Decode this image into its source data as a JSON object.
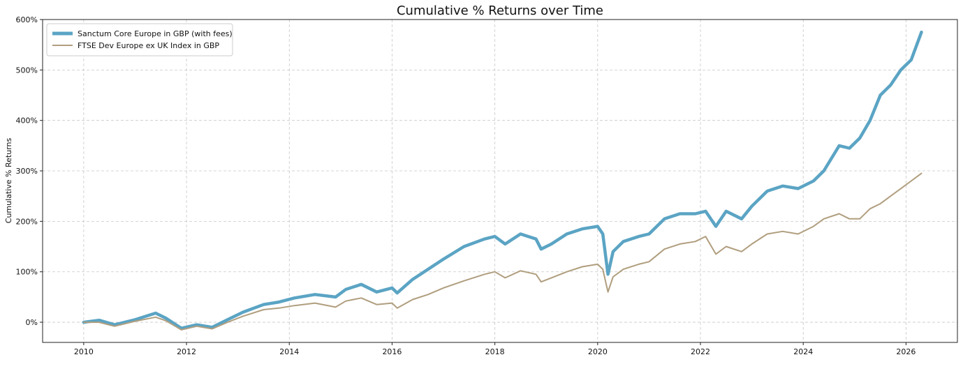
{
  "chart_data": {
    "type": "line",
    "title": "Cumulative % Returns over Time",
    "xlabel": "",
    "ylabel": "Cumulative % Returns",
    "xlim": [
      2009.2,
      2027.0
    ],
    "ylim": [
      -40,
      600
    ],
    "xticks": [
      2010,
      2012,
      2014,
      2016,
      2018,
      2020,
      2022,
      2024,
      2026
    ],
    "yticks": [
      0,
      100,
      200,
      300,
      400,
      500,
      600
    ],
    "ytick_suffix": "%",
    "grid": true,
    "legend_position": "top-left",
    "series": [
      {
        "name": "Sanctum Core Europe in GBP (with fees)",
        "color": "#5ba4c4",
        "x": [
          2010.0,
          2010.3,
          2010.6,
          2011.0,
          2011.4,
          2011.6,
          2011.9,
          2012.2,
          2012.5,
          2012.8,
          2013.1,
          2013.5,
          2013.8,
          2014.1,
          2014.5,
          2014.9,
          2015.1,
          2015.4,
          2015.7,
          2016.0,
          2016.1,
          2016.4,
          2016.7,
          2017.0,
          2017.4,
          2017.8,
          2018.0,
          2018.2,
          2018.5,
          2018.8,
          2018.9,
          2019.1,
          2019.4,
          2019.7,
          2020.0,
          2020.1,
          2020.2,
          2020.3,
          2020.5,
          2020.8,
          2021.0,
          2021.3,
          2021.6,
          2021.9,
          2022.1,
          2022.3,
          2022.5,
          2022.8,
          2023.0,
          2023.3,
          2023.6,
          2023.9,
          2024.2,
          2024.4,
          2024.7,
          2024.9,
          2025.1,
          2025.3,
          2025.5,
          2025.7,
          2025.9,
          2026.1,
          2026.3
        ],
        "y": [
          0,
          4,
          -5,
          5,
          18,
          8,
          -12,
          -5,
          -10,
          5,
          20,
          35,
          40,
          48,
          55,
          50,
          65,
          75,
          60,
          68,
          58,
          85,
          105,
          125,
          150,
          165,
          170,
          155,
          175,
          165,
          145,
          155,
          175,
          185,
          190,
          175,
          95,
          140,
          160,
          170,
          175,
          205,
          215,
          215,
          220,
          190,
          220,
          205,
          230,
          260,
          270,
          265,
          280,
          300,
          350,
          345,
          365,
          400,
          450,
          470,
          500,
          520,
          575
        ]
      },
      {
        "name": "FTSE Dev Europe ex UK Index in GBP",
        "color": "#b09e7e",
        "x": [
          2010.0,
          2010.3,
          2010.6,
          2011.0,
          2011.4,
          2011.6,
          2011.9,
          2012.2,
          2012.5,
          2012.8,
          2013.1,
          2013.5,
          2013.8,
          2014.1,
          2014.5,
          2014.9,
          2015.1,
          2015.4,
          2015.7,
          2016.0,
          2016.1,
          2016.4,
          2016.7,
          2017.0,
          2017.4,
          2017.8,
          2018.0,
          2018.2,
          2018.5,
          2018.8,
          2018.9,
          2019.1,
          2019.4,
          2019.7,
          2020.0,
          2020.1,
          2020.2,
          2020.3,
          2020.5,
          2020.8,
          2021.0,
          2021.3,
          2021.6,
          2021.9,
          2022.1,
          2022.3,
          2022.5,
          2022.8,
          2023.0,
          2023.3,
          2023.6,
          2023.9,
          2024.2,
          2024.4,
          2024.7,
          2024.9,
          2025.1,
          2025.3,
          2025.5,
          2025.7,
          2025.9,
          2026.1,
          2026.3
        ],
        "y": [
          0,
          0,
          -8,
          2,
          10,
          3,
          -15,
          -8,
          -13,
          0,
          12,
          25,
          28,
          33,
          38,
          30,
          42,
          48,
          35,
          38,
          28,
          45,
          55,
          68,
          82,
          95,
          100,
          88,
          102,
          95,
          80,
          88,
          100,
          110,
          115,
          105,
          60,
          90,
          105,
          115,
          120,
          145,
          155,
          160,
          170,
          135,
          150,
          140,
          155,
          175,
          180,
          175,
          190,
          205,
          215,
          205,
          205,
          225,
          235,
          250,
          265,
          280,
          295
        ]
      }
    ]
  }
}
